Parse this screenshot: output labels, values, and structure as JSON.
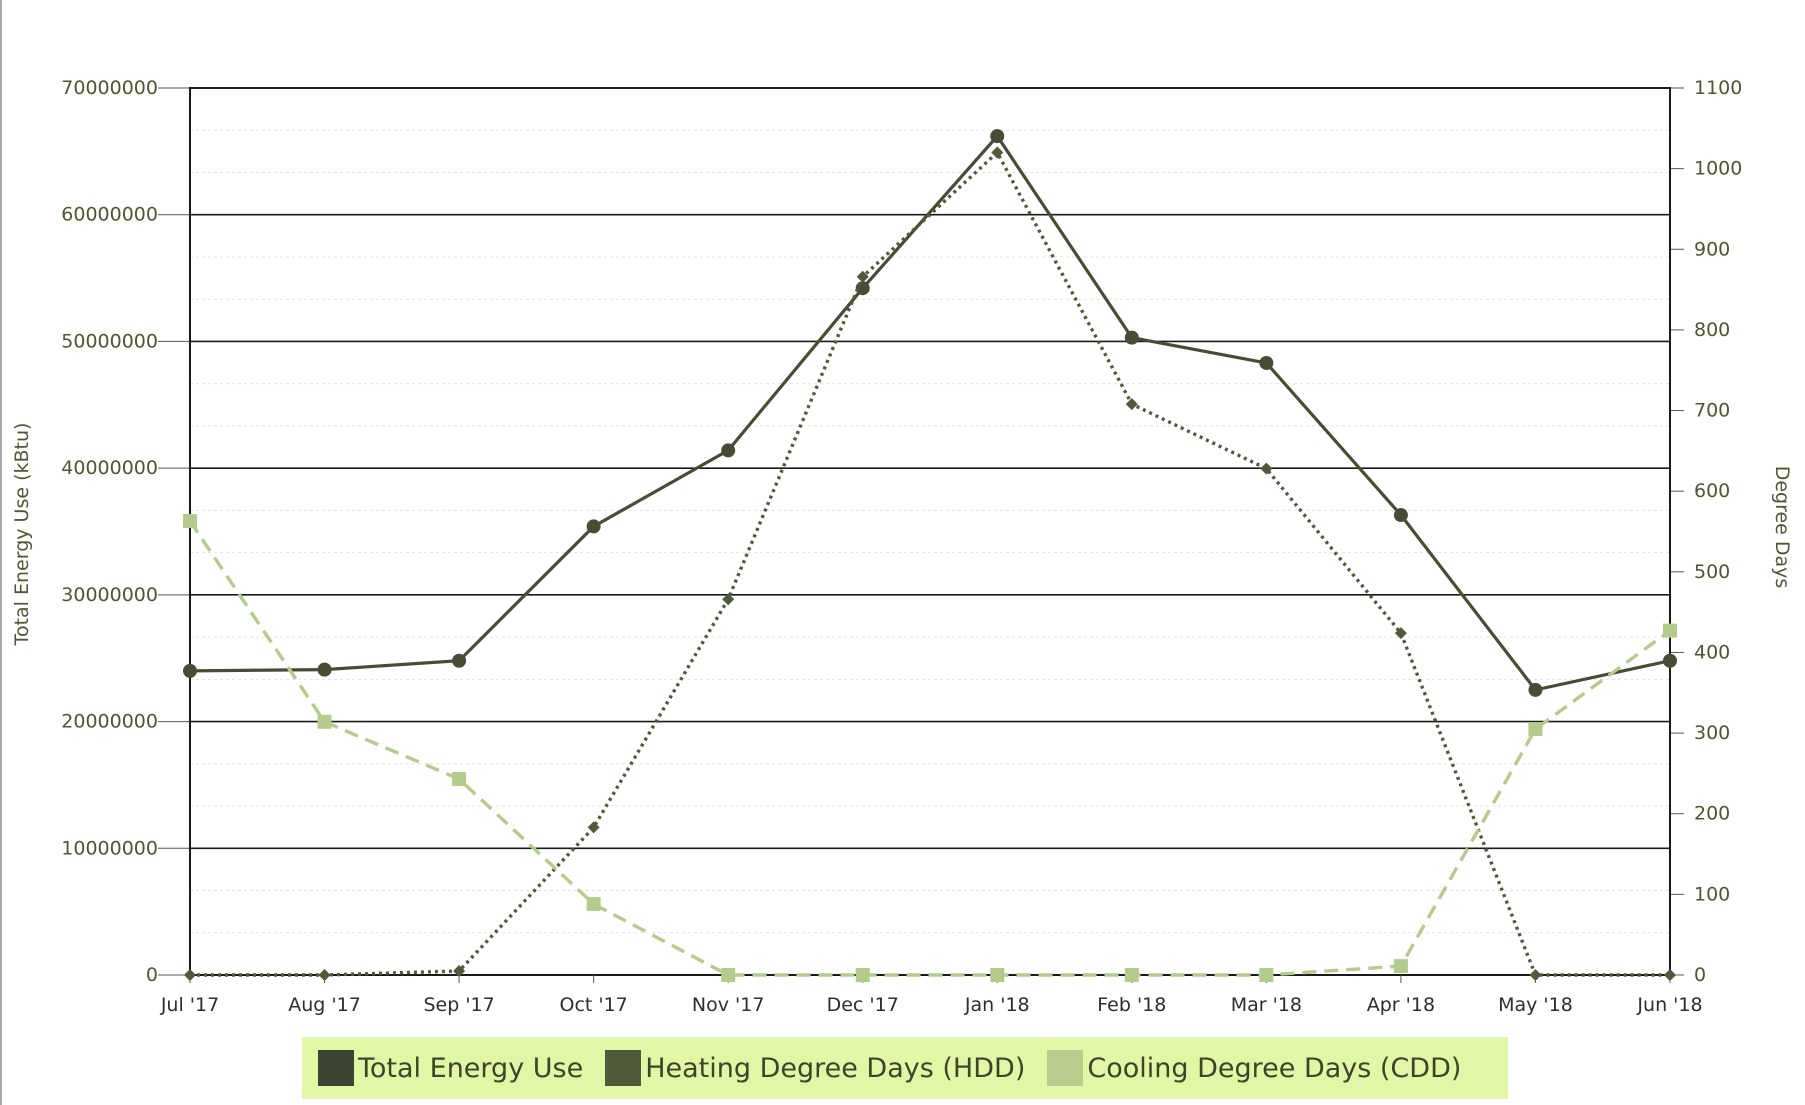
{
  "chart_data": {
    "type": "line",
    "categories": [
      "Jul '17",
      "Aug '17",
      "Sep '17",
      "Oct '17",
      "Nov '17",
      "Dec '17",
      "Jan '18",
      "Feb '18",
      "Mar '18",
      "Apr '18",
      "May '18",
      "Jun '18"
    ],
    "ylabel_left": "Total Energy Use (kBtu)",
    "ylabel_right": "Degree Days",
    "ylim_left": [
      0,
      70000000
    ],
    "yticks_left": [
      "0",
      "10000000",
      "20000000",
      "30000000",
      "40000000",
      "50000000",
      "60000000",
      "70000000"
    ],
    "ylim_right": [
      0,
      1100
    ],
    "yticks_right": [
      "0",
      "100",
      "200",
      "300",
      "400",
      "500",
      "600",
      "700",
      "800",
      "900",
      "1000",
      "1100"
    ],
    "grid": true,
    "legend_position": "bottom",
    "series": [
      {
        "name": "Total Energy Use",
        "axis": "left",
        "style": "solid",
        "marker": "circle",
        "color": "#474d35",
        "values": [
          24000000,
          24100000,
          24800000,
          35400000,
          41400000,
          54200000,
          66200000,
          50300000,
          48300000,
          36300000,
          22500000,
          24800000
        ]
      },
      {
        "name": "Heating Degree Days (HDD)",
        "axis": "right",
        "style": "dotted",
        "marker": "diamond",
        "color": "#4f5a3a",
        "values": [
          0,
          0,
          5,
          183,
          466,
          866,
          1020,
          708,
          628,
          424,
          0,
          0
        ]
      },
      {
        "name": "Cooling Degree Days (CDD)",
        "axis": "right",
        "style": "dashed",
        "marker": "square",
        "color": "#b3cc8c",
        "values": [
          563,
          314,
          243,
          88,
          0,
          0,
          0,
          0,
          0,
          11,
          305,
          427
        ]
      }
    ]
  },
  "legend": {
    "items": [
      {
        "label": "Total Energy Use",
        "color": "#3e4432"
      },
      {
        "label": "Heating Degree Days (HDD)",
        "color": "#4f5a3a"
      },
      {
        "label": "Cooling Degree Days (CDD)",
        "color": "#b8cc8e"
      }
    ]
  }
}
